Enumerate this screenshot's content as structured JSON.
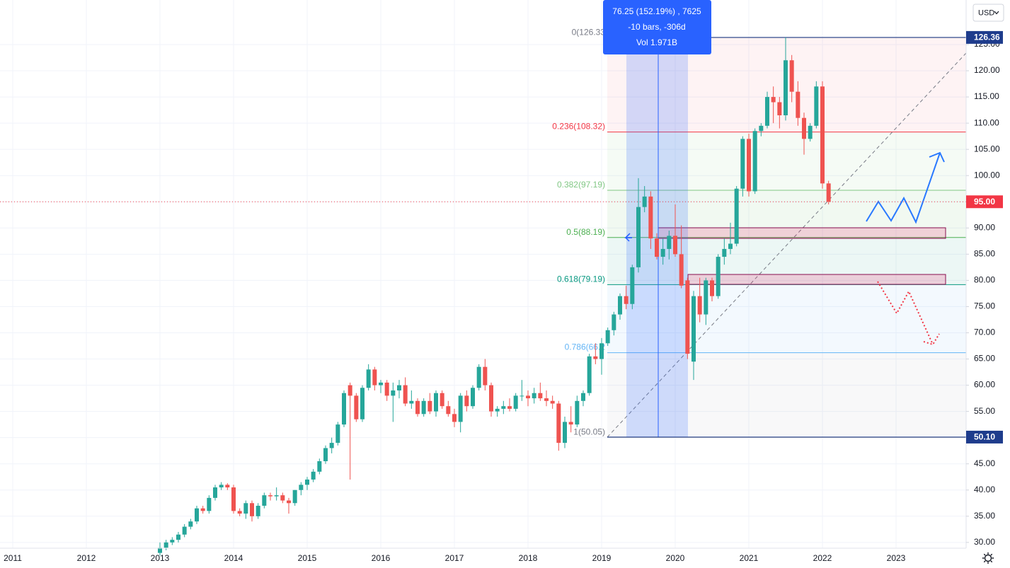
{
  "chart_data": {
    "type": "candlestick",
    "currency": "USD",
    "up_color": "#26a69a",
    "down_color": "#ef5350",
    "ylim": [
      28.9,
      133.5
    ],
    "yticks": [
      {
        "value": 30,
        "label": "30.00"
      },
      {
        "value": 35,
        "label": "35.00"
      },
      {
        "value": 40,
        "label": "40.00"
      },
      {
        "value": 45,
        "label": "45.00"
      },
      {
        "value": 50,
        "label": "50.00"
      },
      {
        "value": 55,
        "label": "55.00"
      },
      {
        "value": 60,
        "label": "60.00"
      },
      {
        "value": 65,
        "label": "65.00"
      },
      {
        "value": 70,
        "label": "70.00"
      },
      {
        "value": 75,
        "label": "75.00"
      },
      {
        "value": 80,
        "label": "80.00"
      },
      {
        "value": 85,
        "label": "85.00"
      },
      {
        "value": 90,
        "label": "90.00"
      },
      {
        "value": 95,
        "label": "95.00"
      },
      {
        "value": 100,
        "label": "100.00"
      },
      {
        "value": 105,
        "label": "105.00"
      },
      {
        "value": 110,
        "label": "110.00"
      },
      {
        "value": 115,
        "label": "115.00"
      },
      {
        "value": 120,
        "label": "120.00"
      },
      {
        "value": 125,
        "label": "125.00"
      }
    ],
    "xticks": [
      2011,
      2012,
      2013,
      2014,
      2015,
      2016,
      2017,
      2018,
      2019,
      2020,
      2021,
      2022,
      2023
    ],
    "fib_levels": [
      {
        "label": "0(126.33",
        "price": 126.33,
        "color": "#787b86"
      },
      {
        "label": "0.236(108.32)",
        "price": 108.32,
        "color": "#f23645"
      },
      {
        "label": "0.382(97.19)",
        "price": 97.19,
        "color": "#81c784"
      },
      {
        "label": "0.5(88.19)",
        "price": 88.19,
        "color": "#4caf50"
      },
      {
        "label": "0.618(79.19)",
        "price": 79.19,
        "color": "#089981"
      },
      {
        "label": "0.786(66.2",
        "price": 66.21,
        "color": "#64b5f6"
      },
      {
        "label": "1(50.05)",
        "price": 50.05,
        "color": "#787b86"
      }
    ],
    "price_labels": [
      {
        "value": 126.36,
        "label": "126.36",
        "color": "#1e3c8c"
      },
      {
        "value": 95,
        "label": "95.00",
        "color": "#f23645"
      },
      {
        "value": 50.1,
        "label": "50.10",
        "color": "#1e3c8c"
      }
    ],
    "measure": [
      "76.25 (152.19%) , 7625",
      "-10 bars, -306d",
      "Vol 1.971B"
    ],
    "candles": [
      {
        "x": "2013-01",
        "open": 28,
        "high": 30,
        "low": 27.5,
        "close": 29
      },
      {
        "x": "2013-02",
        "open": 29,
        "high": 30.5,
        "low": 28.5,
        "close": 30
      },
      {
        "x": "2013-03",
        "open": 30,
        "high": 31,
        "low": 29.5,
        "close": 30.5
      },
      {
        "x": "2013-04",
        "open": 30.5,
        "high": 32,
        "low": 30,
        "close": 31.5
      },
      {
        "x": "2013-05",
        "open": 31.5,
        "high": 33.5,
        "low": 31,
        "close": 33
      },
      {
        "x": "2013-06",
        "open": 33,
        "high": 34.5,
        "low": 32.5,
        "close": 34
      },
      {
        "x": "2013-07",
        "open": 34,
        "high": 37,
        "low": 33.5,
        "close": 36.5
      },
      {
        "x": "2013-08",
        "open": 36.5,
        "high": 37,
        "low": 35.5,
        "close": 36
      },
      {
        "x": "2013-09",
        "open": 36,
        "high": 39,
        "low": 35.5,
        "close": 38.5
      },
      {
        "x": "2013-10",
        "open": 38.5,
        "high": 41,
        "low": 38,
        "close": 40.5
      },
      {
        "x": "2013-11",
        "open": 40.5,
        "high": 41.5,
        "low": 40,
        "close": 41
      },
      {
        "x": "2013-12",
        "open": 41,
        "high": 41.3,
        "low": 40,
        "close": 40.5
      },
      {
        "x": "2014-01",
        "open": 40.5,
        "high": 41,
        "low": 35.5,
        "close": 36
      },
      {
        "x": "2014-02",
        "open": 36,
        "high": 36.5,
        "low": 35,
        "close": 35.5
      },
      {
        "x": "2014-03",
        "open": 35.5,
        "high": 38,
        "low": 34.5,
        "close": 37.5
      },
      {
        "x": "2014-04",
        "open": 37.5,
        "high": 38,
        "low": 34,
        "close": 35
      },
      {
        "x": "2014-05",
        "open": 35,
        "high": 37.5,
        "low": 34.5,
        "close": 37
      },
      {
        "x": "2014-06",
        "open": 37,
        "high": 39.5,
        "low": 36.5,
        "close": 39
      },
      {
        "x": "2014-07",
        "open": 39,
        "high": 39.5,
        "low": 38,
        "close": 38.8
      },
      {
        "x": "2014-08",
        "open": 38.8,
        "high": 40.5,
        "low": 38,
        "close": 39
      },
      {
        "x": "2014-09",
        "open": 39,
        "high": 39.5,
        "low": 37.5,
        "close": 38
      },
      {
        "x": "2014-10",
        "open": 38,
        "high": 38.5,
        "low": 35.5,
        "close": 37.5
      },
      {
        "x": "2014-11",
        "open": 37.5,
        "high": 40,
        "low": 37,
        "close": 40
      },
      {
        "x": "2014-12",
        "open": 40,
        "high": 41.5,
        "low": 39,
        "close": 41
      },
      {
        "x": "2015-01",
        "open": 41,
        "high": 42.5,
        "low": 40,
        "close": 42
      },
      {
        "x": "2015-02",
        "open": 42,
        "high": 44,
        "low": 41.5,
        "close": 43.5
      },
      {
        "x": "2015-03",
        "open": 43.5,
        "high": 46,
        "low": 43,
        "close": 45.5
      },
      {
        "x": "2015-04",
        "open": 45.5,
        "high": 48.5,
        "low": 45,
        "close": 48
      },
      {
        "x": "2015-05",
        "open": 48,
        "high": 50,
        "low": 47,
        "close": 49
      },
      {
        "x": "2015-06",
        "open": 49,
        "high": 53,
        "low": 48.5,
        "close": 52.5
      },
      {
        "x": "2015-07",
        "open": 52.5,
        "high": 59,
        "low": 52,
        "close": 58.5
      },
      {
        "x": "2015-08",
        "open": 60,
        "high": 60.5,
        "low": 42,
        "close": 58
      },
      {
        "x": "2015-09",
        "open": 58,
        "high": 58.5,
        "low": 53,
        "close": 53.5
      },
      {
        "x": "2015-10",
        "open": 53.5,
        "high": 60,
        "low": 53,
        "close": 59.5
      },
      {
        "x": "2015-11",
        "open": 59.5,
        "high": 64,
        "low": 59,
        "close": 63
      },
      {
        "x": "2015-12",
        "open": 63,
        "high": 63.5,
        "low": 59,
        "close": 60
      },
      {
        "x": "2016-01",
        "open": 60,
        "high": 61,
        "low": 58.5,
        "close": 60.5
      },
      {
        "x": "2016-02",
        "open": 60.5,
        "high": 61,
        "low": 57,
        "close": 58
      },
      {
        "x": "2016-03",
        "open": 58,
        "high": 60.5,
        "low": 53,
        "close": 59
      },
      {
        "x": "2016-04",
        "open": 59,
        "high": 61,
        "low": 57.5,
        "close": 60
      },
      {
        "x": "2016-05",
        "open": 60,
        "high": 61.5,
        "low": 56,
        "close": 56.5
      },
      {
        "x": "2016-06",
        "open": 56.5,
        "high": 59,
        "low": 55.5,
        "close": 57
      },
      {
        "x": "2016-07",
        "open": 57,
        "high": 57.5,
        "low": 54,
        "close": 54.5
      },
      {
        "x": "2016-08",
        "open": 54.5,
        "high": 57.5,
        "low": 54,
        "close": 57
      },
      {
        "x": "2016-09",
        "open": 57,
        "high": 58.5,
        "low": 54.5,
        "close": 55
      },
      {
        "x": "2016-10",
        "open": 55,
        "high": 59,
        "low": 54,
        "close": 58.5
      },
      {
        "x": "2016-11",
        "open": 58.5,
        "high": 59,
        "low": 55.5,
        "close": 56
      },
      {
        "x": "2016-12",
        "open": 56,
        "high": 57,
        "low": 54,
        "close": 54.5
      },
      {
        "x": "2017-01",
        "open": 54.5,
        "high": 55.5,
        "low": 52,
        "close": 53
      },
      {
        "x": "2017-02",
        "open": 53,
        "high": 58.5,
        "low": 51,
        "close": 58
      },
      {
        "x": "2017-03",
        "open": 58,
        "high": 59,
        "low": 55,
        "close": 56
      },
      {
        "x": "2017-04",
        "open": 56,
        "high": 60,
        "low": 55.5,
        "close": 59.5
      },
      {
        "x": "2017-05",
        "open": 59.5,
        "high": 64,
        "low": 59,
        "close": 63.5
      },
      {
        "x": "2017-06",
        "open": 63.5,
        "high": 65,
        "low": 59,
        "close": 60
      },
      {
        "x": "2017-07",
        "open": 60,
        "high": 60.5,
        "low": 54,
        "close": 55
      },
      {
        "x": "2017-08",
        "open": 55,
        "high": 56,
        "low": 54,
        "close": 55.5
      },
      {
        "x": "2017-09",
        "open": 55.5,
        "high": 57,
        "low": 54.5,
        "close": 56
      },
      {
        "x": "2017-10",
        "open": 56,
        "high": 57.5,
        "low": 55,
        "close": 55.5
      },
      {
        "x": "2017-11",
        "open": 55.5,
        "high": 58.5,
        "low": 55,
        "close": 58
      },
      {
        "x": "2017-12",
        "open": 58,
        "high": 61,
        "low": 57,
        "close": 58
      },
      {
        "x": "2018-01",
        "open": 58,
        "high": 59,
        "low": 56,
        "close": 57.5
      },
      {
        "x": "2018-02",
        "open": 57.5,
        "high": 59.5,
        "low": 56.5,
        "close": 58.5
      },
      {
        "x": "2018-03",
        "open": 58.5,
        "high": 60.5,
        "low": 57,
        "close": 57.5
      },
      {
        "x": "2018-04",
        "open": 57.5,
        "high": 59,
        "low": 56,
        "close": 57
      },
      {
        "x": "2018-05",
        "open": 57,
        "high": 58,
        "low": 55.5,
        "close": 56.5
      },
      {
        "x": "2018-06",
        "open": 56.5,
        "high": 57,
        "low": 47.5,
        "close": 49
      },
      {
        "x": "2018-07",
        "open": 49,
        "high": 54,
        "low": 48,
        "close": 53
      },
      {
        "x": "2018-08",
        "open": 53,
        "high": 56,
        "low": 51,
        "close": 52.5
      },
      {
        "x": "2018-09",
        "open": 52.5,
        "high": 58,
        "low": 52,
        "close": 57
      },
      {
        "x": "2018-10",
        "open": 57,
        "high": 59,
        "low": 56,
        "close": 58.5
      },
      {
        "x": "2018-11",
        "open": 58.5,
        "high": 66,
        "low": 58,
        "close": 65.5
      },
      {
        "x": "2018-12",
        "open": 65.5,
        "high": 68,
        "low": 64,
        "close": 65
      },
      {
        "x": "2019-01",
        "open": 65,
        "high": 69,
        "low": 62,
        "close": 68
      },
      {
        "x": "2019-02",
        "open": 68,
        "high": 71,
        "low": 67.5,
        "close": 70.5
      },
      {
        "x": "2019-03",
        "open": 70.5,
        "high": 74,
        "low": 69.5,
        "close": 73.5
      },
      {
        "x": "2019-04",
        "open": 73.5,
        "high": 77.5,
        "low": 72.5,
        "close": 77
      },
      {
        "x": "2019-05",
        "open": 77,
        "high": 79,
        "low": 74.5,
        "close": 75.5
      },
      {
        "x": "2019-06",
        "open": 75.5,
        "high": 83,
        "low": 74.5,
        "close": 82.5
      },
      {
        "x": "2019-07",
        "open": 82.5,
        "high": 99.5,
        "low": 81.5,
        "close": 94
      },
      {
        "x": "2019-08",
        "open": 94,
        "high": 98,
        "low": 93,
        "close": 96
      },
      {
        "x": "2019-09",
        "open": 96,
        "high": 97,
        "low": 86,
        "close": 88
      },
      {
        "x": "2019-10",
        "open": 88,
        "high": 89,
        "low": 84,
        "close": 84.5
      },
      {
        "x": "2019-11",
        "open": 84.5,
        "high": 88,
        "low": 83,
        "close": 86
      },
      {
        "x": "2019-12",
        "open": 86,
        "high": 89.5,
        "low": 84,
        "close": 88.5
      },
      {
        "x": "2020-01",
        "open": 88.5,
        "high": 94.5,
        "low": 84.5,
        "close": 85
      },
      {
        "x": "2020-02",
        "open": 85,
        "high": 90.5,
        "low": 78.5,
        "close": 79
      },
      {
        "x": "2020-03",
        "open": 80,
        "high": 80.5,
        "low": 65,
        "close": 66
      },
      {
        "x": "2020-04",
        "open": 64.5,
        "high": 78,
        "low": 61,
        "close": 77
      },
      {
        "x": "2020-05",
        "open": 77,
        "high": 80.5,
        "low": 72,
        "close": 73.5
      },
      {
        "x": "2020-06",
        "open": 73.5,
        "high": 80.5,
        "low": 71.5,
        "close": 80
      },
      {
        "x": "2020-07",
        "open": 80,
        "high": 80.5,
        "low": 76,
        "close": 77
      },
      {
        "x": "2020-08",
        "open": 77,
        "high": 85,
        "low": 76.5,
        "close": 84.5
      },
      {
        "x": "2020-09",
        "open": 84.5,
        "high": 88,
        "low": 83,
        "close": 86
      },
      {
        "x": "2020-10",
        "open": 86,
        "high": 91,
        "low": 85,
        "close": 87
      },
      {
        "x": "2020-11",
        "open": 87,
        "high": 98,
        "low": 86.5,
        "close": 97.5
      },
      {
        "x": "2020-12",
        "open": 97.5,
        "high": 107.5,
        "low": 96,
        "close": 107
      },
      {
        "x": "2021-01",
        "open": 107,
        "high": 108,
        "low": 96,
        "close": 97
      },
      {
        "x": "2021-02",
        "open": 97,
        "high": 109,
        "low": 96.5,
        "close": 108.5
      },
      {
        "x": "2021-03",
        "open": 108.5,
        "high": 110,
        "low": 107.5,
        "close": 109.5
      },
      {
        "x": "2021-04",
        "open": 109.5,
        "high": 116,
        "low": 109,
        "close": 115
      },
      {
        "x": "2021-05",
        "open": 115,
        "high": 117,
        "low": 110,
        "close": 114
      },
      {
        "x": "2021-06",
        "open": 114,
        "high": 115,
        "low": 109,
        "close": 111.5
      },
      {
        "x": "2021-07",
        "open": 111.5,
        "high": 126.36,
        "low": 110.5,
        "close": 122
      },
      {
        "x": "2021-08",
        "open": 122,
        "high": 123,
        "low": 114,
        "close": 116
      },
      {
        "x": "2021-09",
        "open": 116,
        "high": 118,
        "low": 109.5,
        "close": 111
      },
      {
        "x": "2021-10",
        "open": 111,
        "high": 112,
        "low": 104,
        "close": 107
      },
      {
        "x": "2021-11",
        "open": 107,
        "high": 110,
        "low": 106.5,
        "close": 109.5
      },
      {
        "x": "2021-12",
        "open": 109.5,
        "high": 118,
        "low": 109,
        "close": 117
      },
      {
        "x": "2022-01",
        "open": 117,
        "high": 118,
        "low": 97.5,
        "close": 98.5
      },
      {
        "x": "2022-02",
        "open": 98.5,
        "high": 99,
        "low": 94.5,
        "close": 95
      }
    ]
  }
}
